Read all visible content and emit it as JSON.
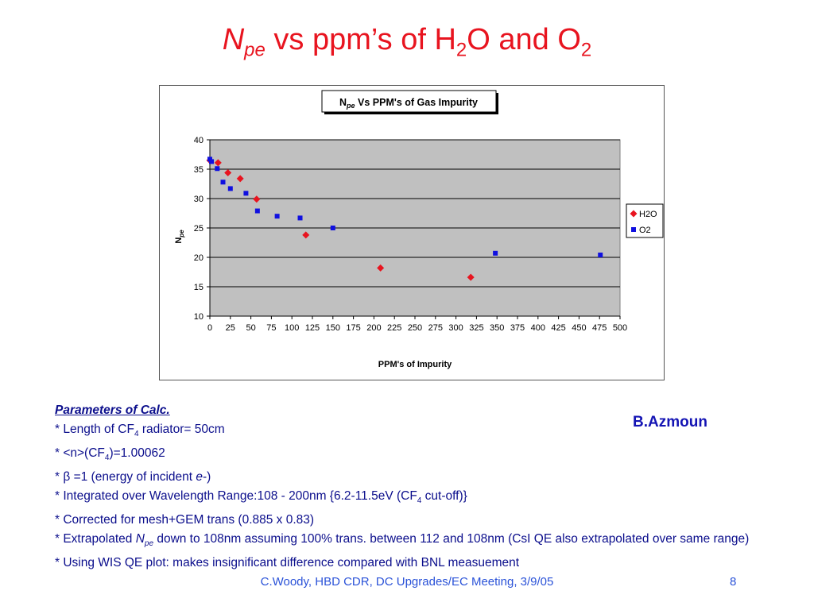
{
  "slide": {
    "title_main": "N",
    "title_sub": "pe",
    "title_mid": " vs ppm’s of H",
    "title_sub2": "2",
    "title_mid2": "O and O",
    "title_sub3": "2"
  },
  "params": {
    "heading": "Parameters of Calc.",
    "l1a": "* Length of CF",
    "l1sub": "4",
    "l1b": " radiator= 50cm",
    "l2a": "* <n>(CF",
    "l2sub": "4",
    "l2b": ")=1.00062",
    "l3a": "* ",
    "l3beta": "β",
    "l3b": " =1 (energy of incident ",
    "l3e": "e",
    "l3c": "-)",
    "l4a": "* Integrated over Wavelength Range:108 - 200nm {6.2-11.5eV (CF",
    "l4sub": "4",
    "l4b": " cut-off)}",
    "l5": "* Corrected for mesh+GEM trans (0.885 x 0.83)",
    "l6a": "* Extrapolated ",
    "l6N": "N",
    "l6sub": "pe",
    "l6b": " down to 108nm assuming 100% trans. between 112 and 108nm (CsI QE also extrapolated over same range)",
    "l7": "* Using WIS QE plot:  makes insignificant difference compared with BNL measuement"
  },
  "author": "B.Azmoun",
  "footer": "C.Woody, HBD CDR, DC Upgrades/EC  Meeting, 3/9/05",
  "page_number": "8",
  "chart_data": {
    "type": "scatter",
    "title_prefix": "N",
    "title_sub": "pe",
    "title_rest": " Vs PPM's of Gas Impurity",
    "xlabel": "PPM's of Impurity",
    "ylabel_main": "N",
    "ylabel_sub": "pe",
    "xlim": [
      0,
      500
    ],
    "ylim": [
      10,
      40
    ],
    "x_ticks": [
      "0",
      "25",
      "50",
      "75",
      "100",
      "125",
      "150",
      "175",
      "200",
      "225",
      "250",
      "275",
      "300",
      "325",
      "350",
      "375",
      "400",
      "425",
      "450",
      "475",
      "500"
    ],
    "y_ticks": [
      "10",
      "15",
      "20",
      "25",
      "30",
      "35",
      "40"
    ],
    "grid": "horizontal",
    "legend_position": "right",
    "plot_background": "#c0c0c0",
    "series": [
      {
        "name": "H2O",
        "color": "#e8141f",
        "marker": "diamond",
        "points": [
          [
            0,
            36.5
          ],
          [
            10,
            36.1
          ],
          [
            22,
            34.4
          ],
          [
            37,
            33.4
          ],
          [
            57,
            29.9
          ],
          [
            117,
            23.8
          ],
          [
            208,
            18.2
          ],
          [
            318,
            16.6
          ]
        ]
      },
      {
        "name": "O2",
        "color": "#1010e0",
        "marker": "square",
        "points": [
          [
            0,
            36.7
          ],
          [
            2,
            36.3
          ],
          [
            9,
            35.1
          ],
          [
            16,
            32.8
          ],
          [
            25,
            31.7
          ],
          [
            44,
            30.9
          ],
          [
            58,
            27.9
          ],
          [
            82,
            27.0
          ],
          [
            110,
            26.7
          ],
          [
            150,
            25.0
          ],
          [
            348,
            20.7
          ],
          [
            476,
            20.4
          ]
        ]
      }
    ]
  }
}
